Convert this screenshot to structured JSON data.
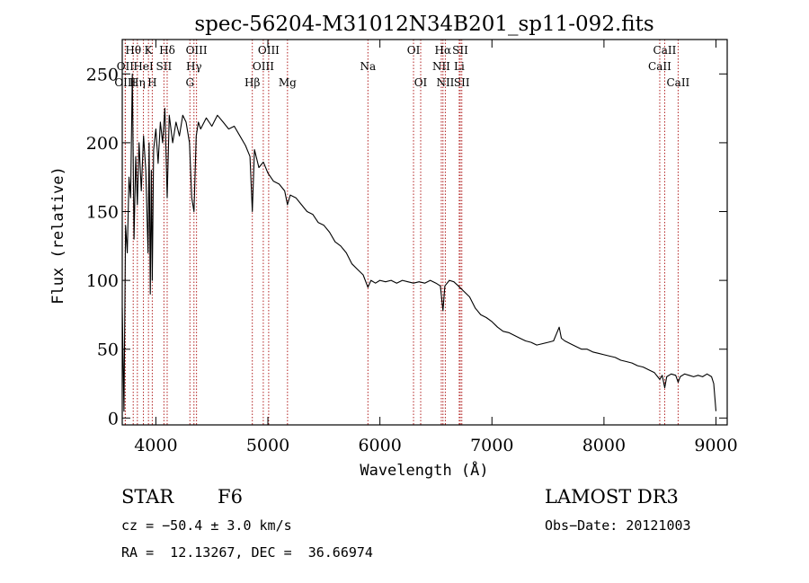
{
  "chart_data": {
    "type": "line",
    "title": "spec-56204-M31012N34B201_sp11-092.fits",
    "xlabel": "Wavelength (Å)",
    "ylabel": "Flux (relative)",
    "xlim": [
      3700,
      9100
    ],
    "ylim": [
      -5,
      275
    ],
    "x_ticks": [
      4000,
      5000,
      6000,
      7000,
      8000,
      9000
    ],
    "x_tick_labels": [
      "4000",
      "5000",
      "6000",
      "7000",
      "8000",
      "9000"
    ],
    "y_ticks": [
      0,
      50,
      100,
      150,
      200,
      250
    ],
    "y_tick_labels": [
      "0",
      "50",
      "100",
      "150",
      "200",
      "250"
    ],
    "grid": false,
    "line_color": "#000000",
    "marker_color": "#b22222",
    "series": [
      {
        "name": "spectrum",
        "points": [
          [
            3700,
            80
          ],
          [
            3715,
            5
          ],
          [
            3730,
            140
          ],
          [
            3745,
            120
          ],
          [
            3760,
            175
          ],
          [
            3775,
            160
          ],
          [
            3790,
            250
          ],
          [
            3805,
            130
          ],
          [
            3820,
            190
          ],
          [
            3835,
            155
          ],
          [
            3850,
            200
          ],
          [
            3870,
            165
          ],
          [
            3890,
            205
          ],
          [
            3910,
            180
          ],
          [
            3930,
            120
          ],
          [
            3940,
            200
          ],
          [
            3950,
            90
          ],
          [
            3960,
            180
          ],
          [
            3968,
            100
          ],
          [
            3980,
            195
          ],
          [
            4000,
            210
          ],
          [
            4020,
            185
          ],
          [
            4040,
            215
          ],
          [
            4060,
            200
          ],
          [
            4080,
            225
          ],
          [
            4101,
            160
          ],
          [
            4120,
            220
          ],
          [
            4150,
            200
          ],
          [
            4180,
            215
          ],
          [
            4210,
            205
          ],
          [
            4240,
            220
          ],
          [
            4270,
            215
          ],
          [
            4300,
            200
          ],
          [
            4320,
            160
          ],
          [
            4340,
            150
          ],
          [
            4360,
            205
          ],
          [
            4380,
            215
          ],
          [
            4400,
            210
          ],
          [
            4450,
            218
          ],
          [
            4500,
            212
          ],
          [
            4550,
            220
          ],
          [
            4600,
            215
          ],
          [
            4650,
            210
          ],
          [
            4700,
            212
          ],
          [
            4750,
            205
          ],
          [
            4800,
            198
          ],
          [
            4840,
            190
          ],
          [
            4861,
            150
          ],
          [
            4880,
            195
          ],
          [
            4920,
            182
          ],
          [
            4960,
            186
          ],
          [
            5000,
            178
          ],
          [
            5050,
            172
          ],
          [
            5100,
            170
          ],
          [
            5150,
            165
          ],
          [
            5175,
            155
          ],
          [
            5200,
            162
          ],
          [
            5250,
            160
          ],
          [
            5300,
            155
          ],
          [
            5350,
            150
          ],
          [
            5400,
            148
          ],
          [
            5450,
            142
          ],
          [
            5500,
            140
          ],
          [
            5550,
            135
          ],
          [
            5600,
            128
          ],
          [
            5650,
            125
          ],
          [
            5700,
            120
          ],
          [
            5750,
            112
          ],
          [
            5800,
            108
          ],
          [
            5850,
            104
          ],
          [
            5893,
            95
          ],
          [
            5920,
            100
          ],
          [
            5960,
            98
          ],
          [
            6000,
            100
          ],
          [
            6050,
            99
          ],
          [
            6100,
            100
          ],
          [
            6150,
            98
          ],
          [
            6200,
            100
          ],
          [
            6250,
            99
          ],
          [
            6300,
            98
          ],
          [
            6350,
            99
          ],
          [
            6400,
            98
          ],
          [
            6450,
            100
          ],
          [
            6500,
            98
          ],
          [
            6540,
            96
          ],
          [
            6563,
            78
          ],
          [
            6580,
            96
          ],
          [
            6620,
            100
          ],
          [
            6660,
            99
          ],
          [
            6700,
            96
          ],
          [
            6750,
            92
          ],
          [
            6800,
            88
          ],
          [
            6850,
            80
          ],
          [
            6900,
            75
          ],
          [
            6950,
            73
          ],
          [
            7000,
            70
          ],
          [
            7050,
            66
          ],
          [
            7100,
            63
          ],
          [
            7150,
            62
          ],
          [
            7200,
            60
          ],
          [
            7250,
            58
          ],
          [
            7300,
            56
          ],
          [
            7350,
            55
          ],
          [
            7400,
            53
          ],
          [
            7450,
            54
          ],
          [
            7500,
            55
          ],
          [
            7550,
            56
          ],
          [
            7580,
            62
          ],
          [
            7600,
            66
          ],
          [
            7620,
            58
          ],
          [
            7650,
            56
          ],
          [
            7700,
            54
          ],
          [
            7750,
            52
          ],
          [
            7800,
            50
          ],
          [
            7850,
            50
          ],
          [
            7900,
            48
          ],
          [
            7950,
            47
          ],
          [
            8000,
            46
          ],
          [
            8050,
            45
          ],
          [
            8100,
            44
          ],
          [
            8150,
            42
          ],
          [
            8200,
            41
          ],
          [
            8250,
            40
          ],
          [
            8300,
            38
          ],
          [
            8350,
            37
          ],
          [
            8400,
            35
          ],
          [
            8450,
            33
          ],
          [
            8498,
            28
          ],
          [
            8520,
            31
          ],
          [
            8542,
            22
          ],
          [
            8560,
            30
          ],
          [
            8600,
            32
          ],
          [
            8640,
            31
          ],
          [
            8662,
            26
          ],
          [
            8680,
            30
          ],
          [
            8720,
            32
          ],
          [
            8760,
            31
          ],
          [
            8800,
            30
          ],
          [
            8840,
            31
          ],
          [
            8880,
            30
          ],
          [
            8920,
            32
          ],
          [
            8960,
            30
          ],
          [
            8980,
            25
          ],
          [
            9000,
            5
          ]
        ]
      }
    ],
    "lines": [
      {
        "label": "Hθ",
        "wavelength": 3798,
        "row": 1
      },
      {
        "label": "OII",
        "wavelength": 3727,
        "row": 2
      },
      {
        "label": "OIII",
        "wavelength": 3727,
        "row": 3
      },
      {
        "label": "Hη",
        "wavelength": 3835,
        "row": 3
      },
      {
        "label": "K",
        "wavelength": 3934,
        "row": 1
      },
      {
        "label": "HeI",
        "wavelength": 3889,
        "row": 2
      },
      {
        "label": "H",
        "wavelength": 3968,
        "row": 3
      },
      {
        "label": "SII",
        "wavelength": 4072,
        "row": 2
      },
      {
        "label": "Hδ",
        "wavelength": 4101,
        "row": 1
      },
      {
        "label": "OIII",
        "wavelength": 4363,
        "row": 1
      },
      {
        "label": "Hγ",
        "wavelength": 4340,
        "row": 2
      },
      {
        "label": "G",
        "wavelength": 4304,
        "row": 3
      },
      {
        "label": "OIII",
        "wavelength": 5007,
        "row": 1
      },
      {
        "label": "OIII",
        "wavelength": 4959,
        "row": 2
      },
      {
        "label": "Hβ",
        "wavelength": 4861,
        "row": 3
      },
      {
        "label": "Mg",
        "wavelength": 5175,
        "row": 3
      },
      {
        "label": "Na",
        "wavelength": 5893,
        "row": 2
      },
      {
        "label": "OI",
        "wavelength": 6300,
        "row": 1
      },
      {
        "label": "OI",
        "wavelength": 6364,
        "row": 3
      },
      {
        "label": "Hα",
        "wavelength": 6563,
        "row": 1
      },
      {
        "label": "NII",
        "wavelength": 6548,
        "row": 2
      },
      {
        "label": "NII",
        "wavelength": 6584,
        "row": 3
      },
      {
        "label": "SII",
        "wavelength": 6717,
        "row": 1
      },
      {
        "label": "Li",
        "wavelength": 6708,
        "row": 2
      },
      {
        "label": "SII",
        "wavelength": 6731,
        "row": 3
      },
      {
        "label": "CaII",
        "wavelength": 8542,
        "row": 1
      },
      {
        "label": "CaII",
        "wavelength": 8498,
        "row": 2
      },
      {
        "label": "CaII",
        "wavelength": 8662,
        "row": 3
      }
    ]
  },
  "info": {
    "class": "STAR",
    "subclass": "F6",
    "survey": "LAMOST DR3",
    "cz": "cz = −50.4 ± 3.0 km/s",
    "obs_date": "Obs−Date: 20121003",
    "radec": "RA =  12.13267, DEC =  36.66974"
  }
}
